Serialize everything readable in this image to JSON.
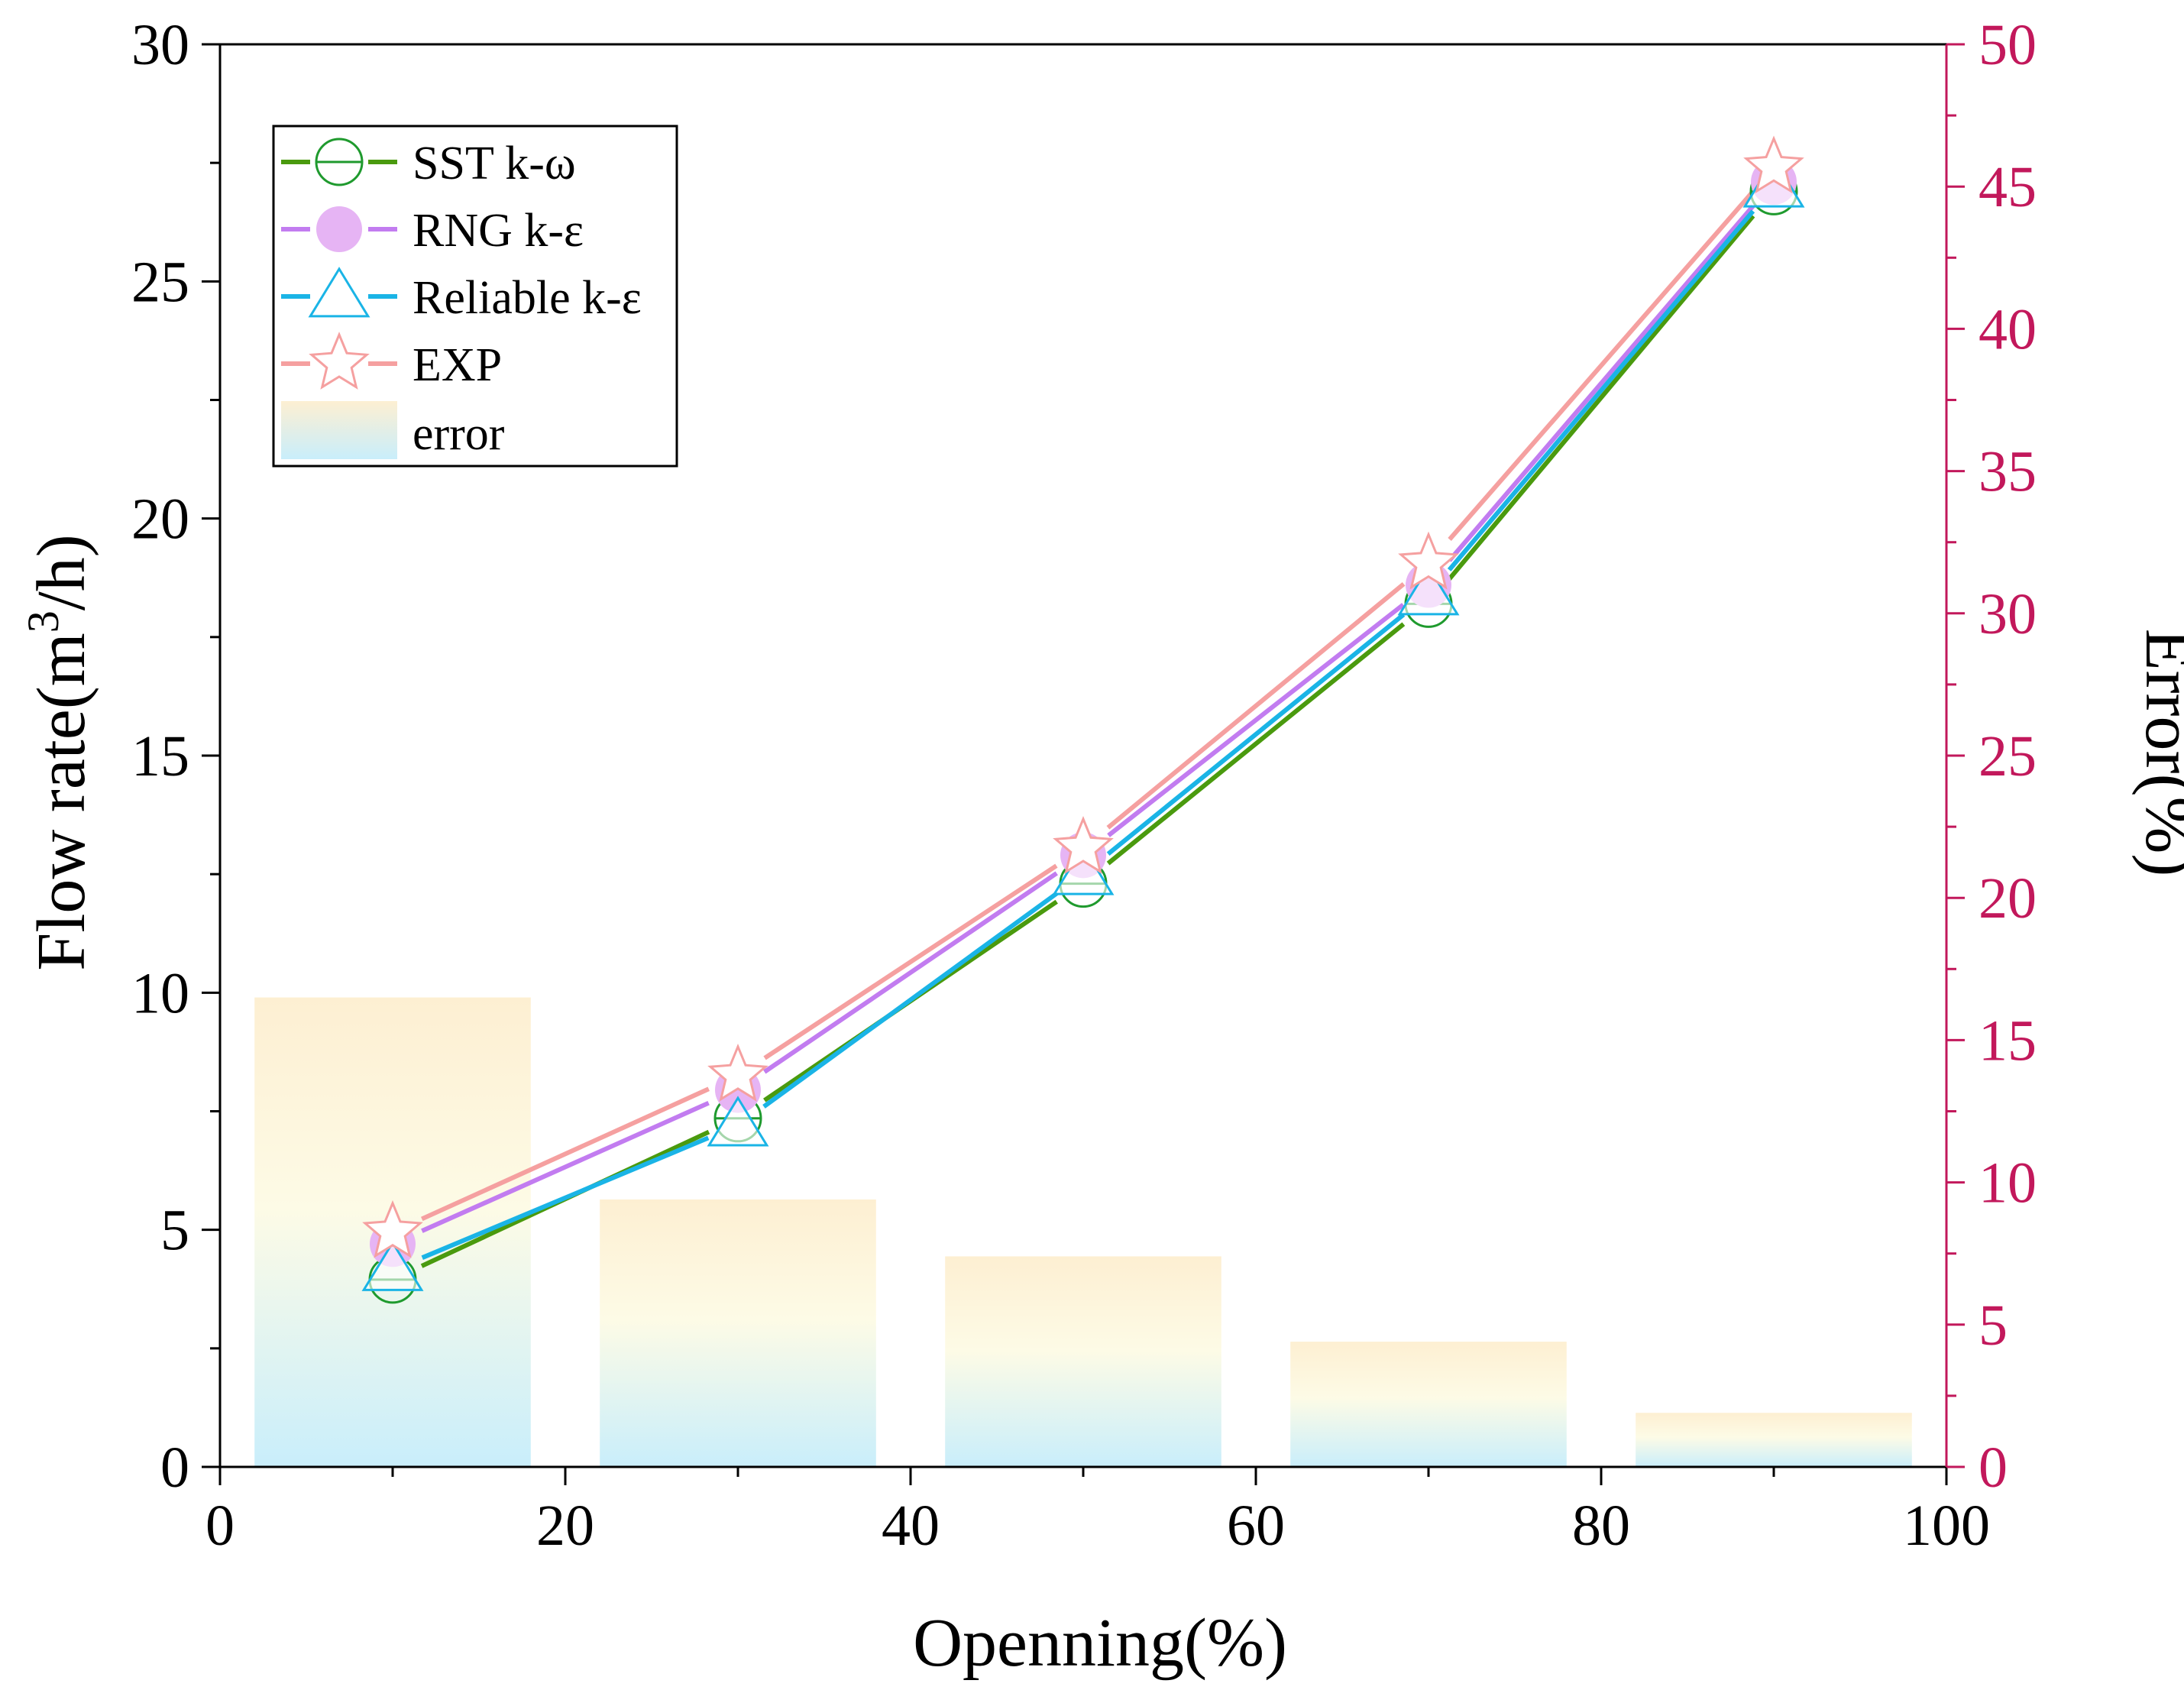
{
  "colors": {
    "sst": "#4a9a0e",
    "sst_marker": "#1f9a2e",
    "rng": "#c27cf0",
    "rng_marker": "#e6b4f4",
    "reliable": "#1ab4e6",
    "exp": "#f5a0a0",
    "right_axis": "#c2185b",
    "bar_top": "#fdefd2",
    "bar_mid": "#fdfbe6",
    "bar_bottom": "#c9eefb"
  },
  "chart_data": {
    "type": "line",
    "x": [
      10,
      30,
      50,
      70,
      90
    ],
    "xlabel": "Openning(%)",
    "ylabel": "Flow rate(m",
    "ylabel_sup": "3",
    "ylabel_tail": "/h)",
    "y2label": "Error(%)",
    "xlim": [
      0,
      100
    ],
    "ylim": [
      0,
      30
    ],
    "y2lim": [
      0,
      50
    ],
    "x_ticks": [
      0,
      20,
      40,
      60,
      80,
      100
    ],
    "y_ticks": [
      0,
      5,
      10,
      15,
      20,
      25,
      30
    ],
    "y2_ticks": [
      0,
      5,
      10,
      15,
      20,
      25,
      30,
      35,
      40,
      45,
      50
    ],
    "series": [
      {
        "name": "SST k-ω",
        "marker": "open-circle",
        "values": [
          3.95,
          7.35,
          12.3,
          18.2,
          26.9
        ]
      },
      {
        "name": "RNG k-ε",
        "marker": "filled-circle",
        "values": [
          4.7,
          7.95,
          12.9,
          18.6,
          27.1
        ]
      },
      {
        "name": "Reliable k-ε",
        "marker": "open-triangle",
        "values": [
          4.15,
          7.2,
          12.5,
          18.4,
          27.0
        ]
      },
      {
        "name": "EXP",
        "marker": "open-star",
        "values": [
          4.95,
          8.25,
          13.05,
          19.05,
          27.4
        ]
      }
    ],
    "bars": {
      "name": "error",
      "axis": "right",
      "x": [
        10,
        30,
        50,
        70,
        90
      ],
      "width": 16,
      "values": [
        16.5,
        9.4,
        7.4,
        4.4,
        1.9
      ]
    }
  }
}
